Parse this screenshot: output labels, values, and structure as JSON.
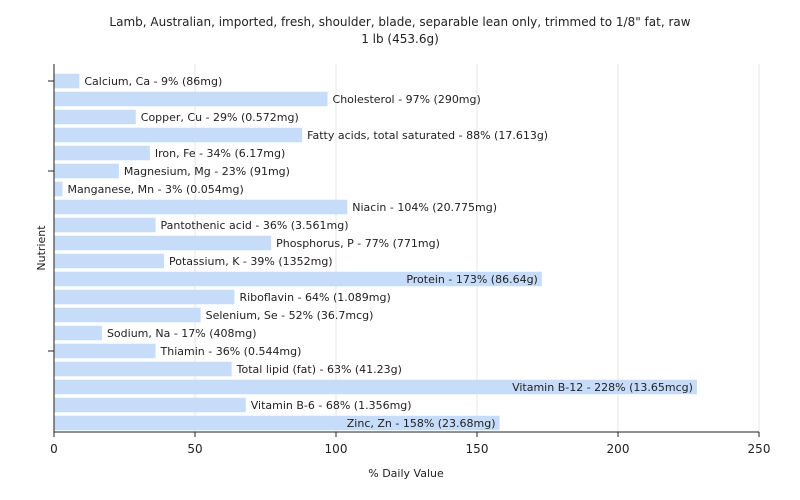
{
  "chart_data": {
    "type": "bar",
    "orientation": "horizontal",
    "title": "Lamb, Australian, imported, fresh, shoulder, blade, separable lean only, trimmed to 1/8\" fat, raw",
    "subtitle": "1 lb (453.6g)",
    "xlabel": "% Daily Value",
    "ylabel": "Nutrient",
    "xlim": [
      0,
      250
    ],
    "xticks": [
      0,
      50,
      100,
      150,
      200,
      250
    ],
    "grid": true,
    "bar_color": "#c6dcf8",
    "categories": [
      "Calcium, Ca",
      "Cholesterol",
      "Copper, Cu",
      "Fatty acids, total saturated",
      "Iron, Fe",
      "Magnesium, Mg",
      "Manganese, Mn",
      "Niacin",
      "Pantothenic acid",
      "Phosphorus, P",
      "Potassium, K",
      "Protein",
      "Riboflavin",
      "Selenium, Se",
      "Sodium, Na",
      "Thiamin",
      "Total lipid (fat)",
      "Vitamin B-12",
      "Vitamin B-6",
      "Zinc, Zn"
    ],
    "values": [
      9,
      97,
      29,
      88,
      34,
      23,
      3,
      104,
      36,
      77,
      39,
      173,
      64,
      52,
      17,
      36,
      63,
      228,
      68,
      158
    ],
    "labels": [
      "Calcium, Ca - 9% (86mg)",
      "Cholesterol - 97% (290mg)",
      "Copper, Cu - 29% (0.572mg)",
      "Fatty acids, total saturated - 88% (17.613g)",
      "Iron, Fe - 34% (6.17mg)",
      "Magnesium, Mg - 23% (91mg)",
      "Manganese, Mn - 3% (0.054mg)",
      "Niacin - 104% (20.775mg)",
      "Pantothenic acid - 36% (3.561mg)",
      "Phosphorus, P - 77% (771mg)",
      "Potassium, K - 39% (1352mg)",
      "Protein - 173% (86.64g)",
      "Riboflavin - 64% (1.089mg)",
      "Selenium, Se - 52% (36.7mcg)",
      "Sodium, Na - 17% (408mg)",
      "Thiamin - 36% (0.544mg)",
      "Total lipid (fat) - 63% (41.23g)",
      "Vitamin B-12 - 228% (13.65mcg)",
      "Vitamin B-6 - 68% (1.356mg)",
      "Zinc, Zn - 158% (23.68mg)"
    ]
  }
}
